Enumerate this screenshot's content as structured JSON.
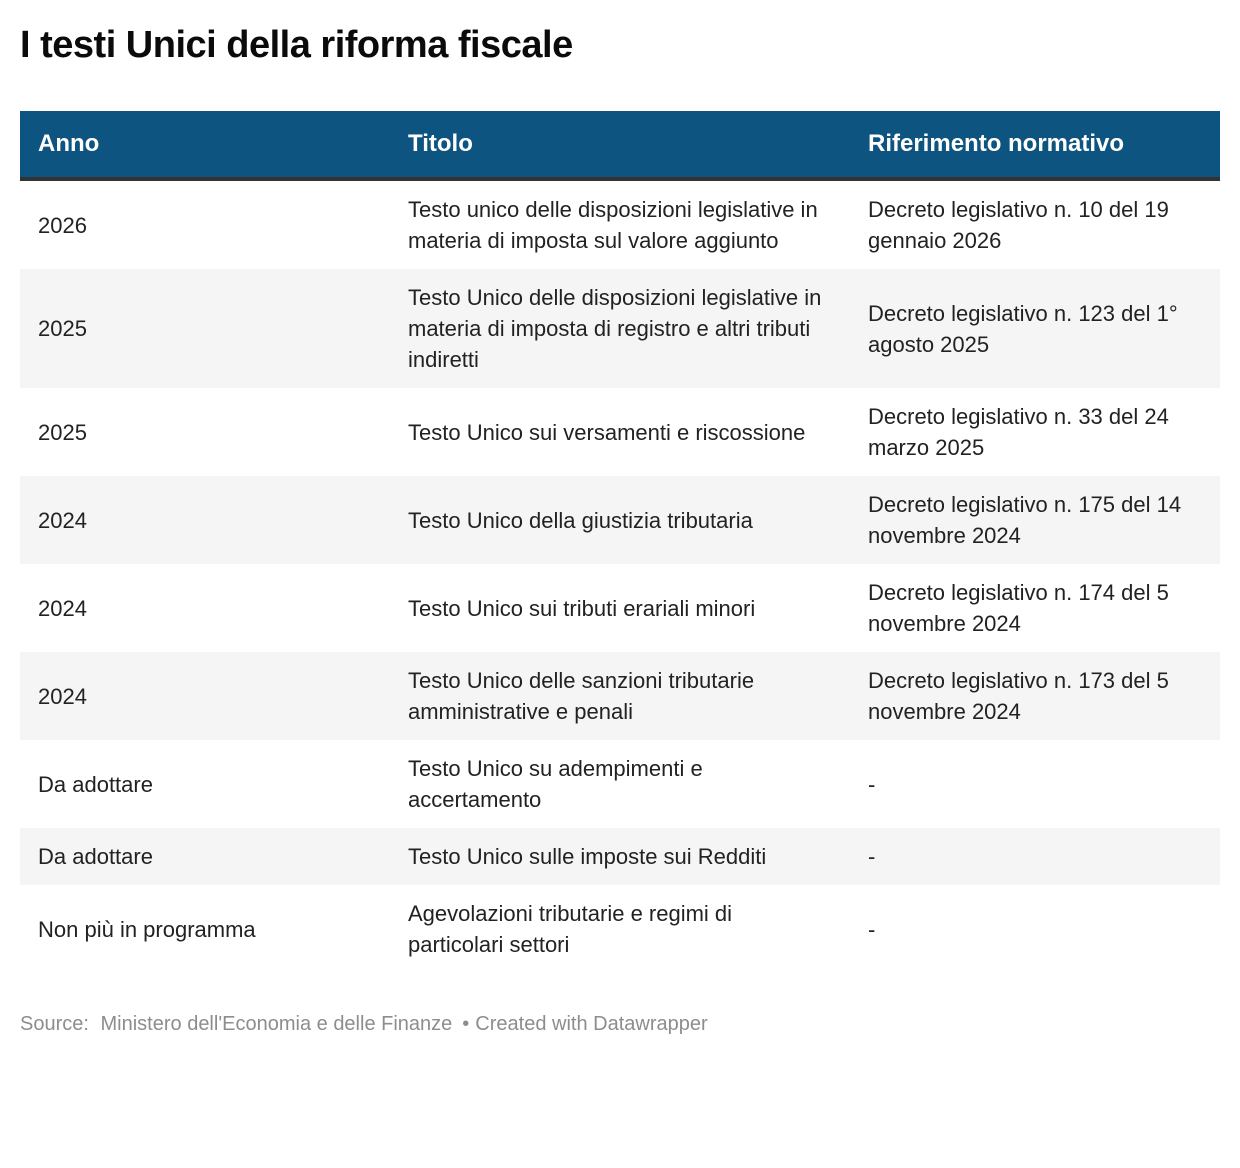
{
  "chart_data": {
    "type": "table",
    "title": "I testi Unici della riforma fiscale",
    "columns": [
      "Anno",
      "Titolo",
      "Riferimento normativo"
    ],
    "rows": [
      [
        "2026",
        "Testo unico delle disposizioni legislative in materia di imposta sul valore aggiunto",
        "Decreto legislativo n. 10 del 19 gennaio 2026"
      ],
      [
        "2025",
        "Testo Unico delle disposizioni legislative in materia di imposta di registro e altri tributi indiretti",
        "Decreto legislativo n. 123 del 1° agosto 2025"
      ],
      [
        "2025",
        "Testo Unico sui versamenti e riscossione",
        "Decreto legislativo n. 33 del 24 marzo 2025"
      ],
      [
        "2024",
        "Testo Unico della giustizia tributaria",
        "Decreto legislativo n. 175 del 14 novembre 2024"
      ],
      [
        "2024",
        "Testo Unico sui tributi erariali minori",
        "Decreto legislativo n. 174 del 5 novembre 2024"
      ],
      [
        "2024",
        "Testo Unico delle sanzioni tributarie amministrative e penali",
        "Decreto legislativo n. 173 del 5 novembre 2024"
      ],
      [
        "Da adottare",
        "Testo Unico su adempimenti e accertamento",
        "-"
      ],
      [
        "Da adottare",
        "Testo Unico sulle imposte sui Redditi",
        "-"
      ],
      [
        "Non più in programma",
        "Agevolazioni tributarie e regimi di particolari settori",
        "-"
      ]
    ],
    "layout_hints": {
      "striped_rows": true,
      "stripe_on": "even",
      "header_background": "#0e5480",
      "header_text_color": "#ffffff"
    }
  },
  "footer": {
    "source_label": "Source:",
    "source_text": "Ministero dell'Economia e delle Finanze",
    "separator": "•",
    "credit": "Created with Datawrapper"
  },
  "colors": {
    "header_background": "#0e5480",
    "header_text": "#ffffff",
    "header_bottom_border": "#333333",
    "row_stripe": "#f5f5f5",
    "body_text": "#222222",
    "title_text": "#0b0b0b",
    "footer_text": "#8d8d8d",
    "page_background": "#ffffff"
  }
}
